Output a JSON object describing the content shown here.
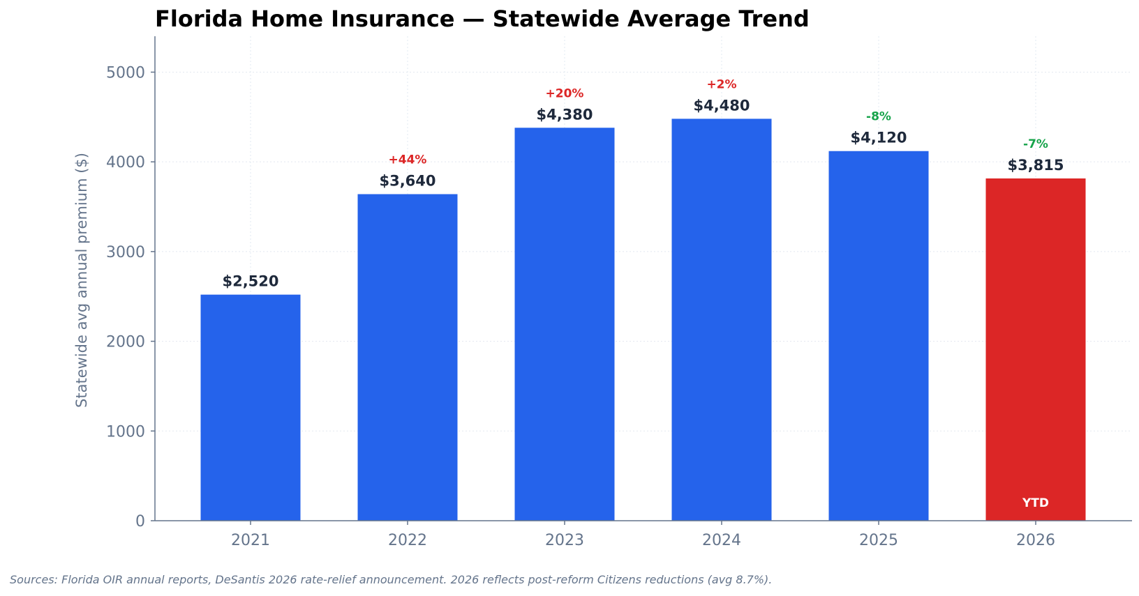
{
  "chart_data": {
    "type": "bar",
    "title": "Florida Home Insurance — Statewide Average Trend",
    "ylabel": "Statewide avg annual premium ($)",
    "xlabel": "",
    "ylim": [
      0,
      5400
    ],
    "yticks": [
      0,
      1000,
      2000,
      3000,
      4000,
      5000
    ],
    "grid": true,
    "categories": [
      "2021",
      "2022",
      "2023",
      "2024",
      "2025",
      "2026"
    ],
    "values": [
      2520,
      3640,
      4380,
      4480,
      4120,
      3815
    ],
    "value_labels": [
      "$2,520",
      "$3,640",
      "$4,380",
      "$4,480",
      "$4,120",
      "$3,815"
    ],
    "change_labels": [
      "",
      "+44%",
      "+20%",
      "+2%",
      "-8%",
      "-7%"
    ],
    "bar_colors": [
      "#2563eb",
      "#2563eb",
      "#2563eb",
      "#2563eb",
      "#2563eb",
      "#dc2626"
    ],
    "change_colors": {
      "increase": "#dc2626",
      "decrease": "#16a34a"
    },
    "bar_inner_labels": [
      "",
      "",
      "",
      "",
      "",
      "YTD"
    ],
    "source_note": "Sources: Florida OIR annual reports, DeSantis 2026 rate-relief announcement. 2026 reflects post-reform Citizens reductions (avg 8.7%)."
  }
}
